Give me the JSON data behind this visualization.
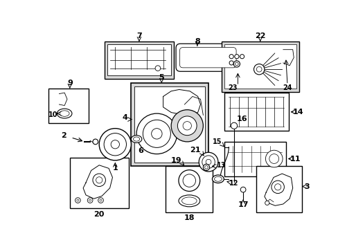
{
  "bg_color": "#ffffff",
  "line_color": "#000000",
  "gray": "#d8d8d8",
  "figsize": [
    4.89,
    3.6
  ],
  "dpi": 100
}
